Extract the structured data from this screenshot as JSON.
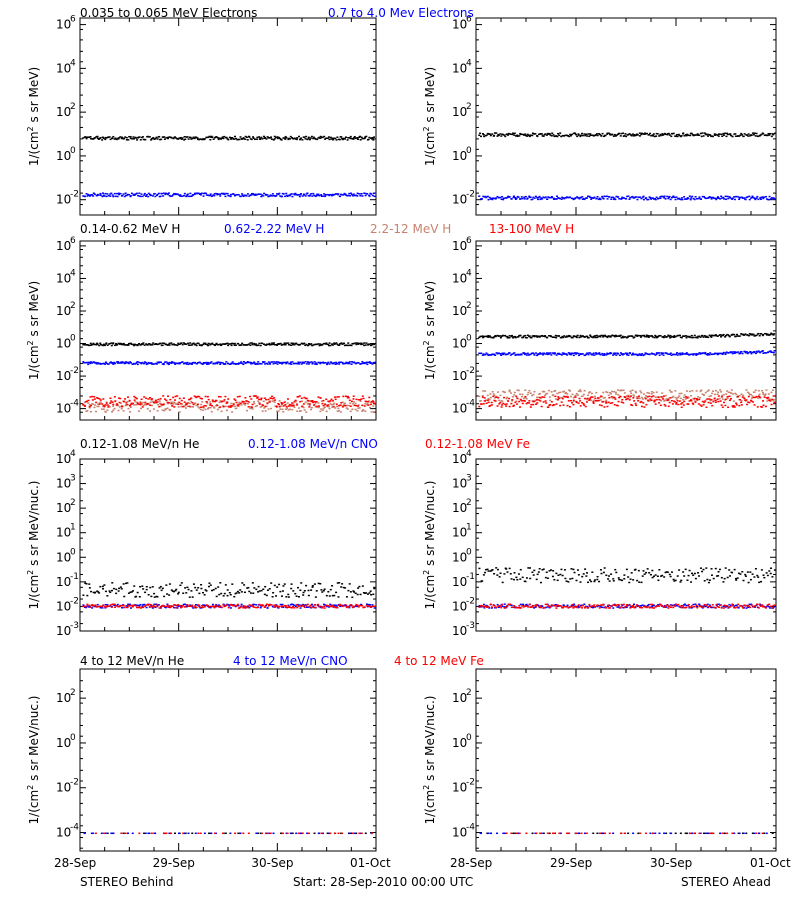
{
  "footer": {
    "left": "STEREO Behind",
    "center": "Start: 28-Sep-2010 00:00 UTC",
    "right": "STEREO Ahead"
  },
  "x_ticks": [
    "28-Sep",
    "29-Sep",
    "30-Sep",
    "01-Oct"
  ],
  "chart_data": [
    {
      "type": "scatter",
      "row": 1,
      "panels": [
        "STEREO Behind",
        "STEREO Ahead"
      ],
      "legend": [
        {
          "text": "0.035 to 0.065 MeV Electrons",
          "color": "#000000"
        },
        {
          "text": "0.7 to 4.0 Mev Electrons",
          "color": "#0000ff"
        }
      ],
      "ylabel": "1/(cm² s sr MeV)",
      "ylim": [
        0.002,
        2000000
      ],
      "yscale": "log",
      "yticks": [
        {
          "value": 0.01,
          "label": "10⁻²"
        },
        {
          "value": 1,
          "label": "10⁰"
        },
        {
          "value": 100,
          "label": "10²"
        },
        {
          "value": 10000,
          "label": "10⁴"
        },
        {
          "value": 1000000,
          "label": "10⁶"
        }
      ],
      "xlim_days": [
        0,
        3
      ],
      "series": [
        {
          "name": "0.035 to 0.065 MeV Electrons",
          "color": "#000000",
          "behind_level": 7.0,
          "ahead_level": 10.0
        },
        {
          "name": "0.7 to 4.0 Mev Electrons",
          "color": "#0000ff",
          "behind_level": 0.018,
          "ahead_level": 0.013
        }
      ]
    },
    {
      "type": "scatter",
      "row": 2,
      "panels": [
        "STEREO Behind",
        "STEREO Ahead"
      ],
      "legend": [
        {
          "text": "0.14-0.62 MeV H",
          "color": "#000000"
        },
        {
          "text": "0.62-2.22 MeV H",
          "color": "#0000ff"
        },
        {
          "text": "2.2-12 MeV H",
          "color": "#c8826e"
        },
        {
          "text": "13-100 MeV H",
          "color": "#ff0000"
        }
      ],
      "ylabel": "1/(cm² s sr MeV)",
      "ylim": [
        2e-05,
        2000000
      ],
      "yscale": "log",
      "yticks": [
        {
          "value": 0.0001,
          "label": "10⁻⁴"
        },
        {
          "value": 0.01,
          "label": "10⁻²"
        },
        {
          "value": 1,
          "label": "10⁰"
        },
        {
          "value": 100,
          "label": "10²"
        },
        {
          "value": 10000,
          "label": "10⁴"
        },
        {
          "value": 1000000,
          "label": "10⁶"
        }
      ],
      "xlim_days": [
        0,
        3
      ],
      "series": [
        {
          "name": "0.14-0.62 MeV H",
          "color": "#000000",
          "behind_level": 1.0,
          "ahead_level": 3.0
        },
        {
          "name": "0.62-2.22 MeV H",
          "color": "#0000ff",
          "behind_level": 0.07,
          "ahead_level": 0.25
        },
        {
          "name": "2.2-12 MeV H",
          "color": "#c8826e",
          "behind_level": 0.00015,
          "ahead_level": 0.0007
        },
        {
          "name": "13-100 MeV H",
          "color": "#ff0000",
          "behind_level": 0.0003,
          "ahead_level": 0.0003
        }
      ]
    },
    {
      "type": "scatter",
      "row": 3,
      "panels": [
        "STEREO Behind",
        "STEREO Ahead"
      ],
      "legend": [
        {
          "text": "0.12-1.08 MeV/n He",
          "color": "#000000"
        },
        {
          "text": "0.12-1.08 MeV/n CNO",
          "color": "#0000ff"
        },
        {
          "text": "0.12-1.08 MeV Fe",
          "color": "#ff0000"
        }
      ],
      "ylabel": "1/(cm² s sr MeV/nuc.)",
      "ylim": [
        0.001,
        10000
      ],
      "yscale": "log",
      "yticks": [
        {
          "value": 0.001,
          "label": "10⁻³"
        },
        {
          "value": 0.01,
          "label": "10⁻²"
        },
        {
          "value": 0.1,
          "label": "10⁻¹"
        },
        {
          "value": 1,
          "label": "10⁰"
        },
        {
          "value": 10,
          "label": "10¹"
        },
        {
          "value": 100,
          "label": "10²"
        },
        {
          "value": 1000,
          "label": "10³"
        },
        {
          "value": 10000,
          "label": "10⁴"
        }
      ],
      "xlim_days": [
        0,
        3
      ],
      "series": [
        {
          "name": "0.12-1.08 MeV/n He",
          "color": "#000000",
          "behind_level": 0.05,
          "ahead_level": 0.2
        },
        {
          "name": "0.12-1.08 MeV/n CNO",
          "color": "#0000ff",
          "behind_level": 0.011,
          "ahead_level": 0.011
        },
        {
          "name": "0.12-1.08 MeV Fe",
          "color": "#ff0000",
          "behind_level": 0.011,
          "ahead_level": 0.011
        }
      ]
    },
    {
      "type": "scatter",
      "row": 4,
      "panels": [
        "STEREO Behind",
        "STEREO Ahead"
      ],
      "legend": [
        {
          "text": "4 to 12 MeV/n He",
          "color": "#000000"
        },
        {
          "text": "4 to 12 MeV/n CNO",
          "color": "#0000ff"
        },
        {
          "text": "4 to 12 MeV Fe",
          "color": "#ff0000"
        }
      ],
      "ylabel": "1/(cm² s sr MeV/nuc.)",
      "ylim": [
        1.5e-05,
        2000
      ],
      "yscale": "log",
      "yticks": [
        {
          "value": 0.0001,
          "label": "10⁻⁴"
        },
        {
          "value": 0.01,
          "label": "10⁻²"
        },
        {
          "value": 1,
          "label": "10⁰"
        },
        {
          "value": 100,
          "label": "10²"
        }
      ],
      "xlim_days": [
        0,
        3
      ],
      "series": [
        {
          "name": "4 to 12 MeV/n He",
          "color": "#000000",
          "behind_level": 0.0001,
          "ahead_level": 0.0001
        },
        {
          "name": "4 to 12 MeV/n CNO",
          "color": "#0000ff",
          "behind_level": 0.0001,
          "ahead_level": 0.0001
        },
        {
          "name": "4 to 12 MeV Fe",
          "color": "#ff0000",
          "behind_level": 0.0001,
          "ahead_level": 0.0001
        }
      ]
    }
  ]
}
